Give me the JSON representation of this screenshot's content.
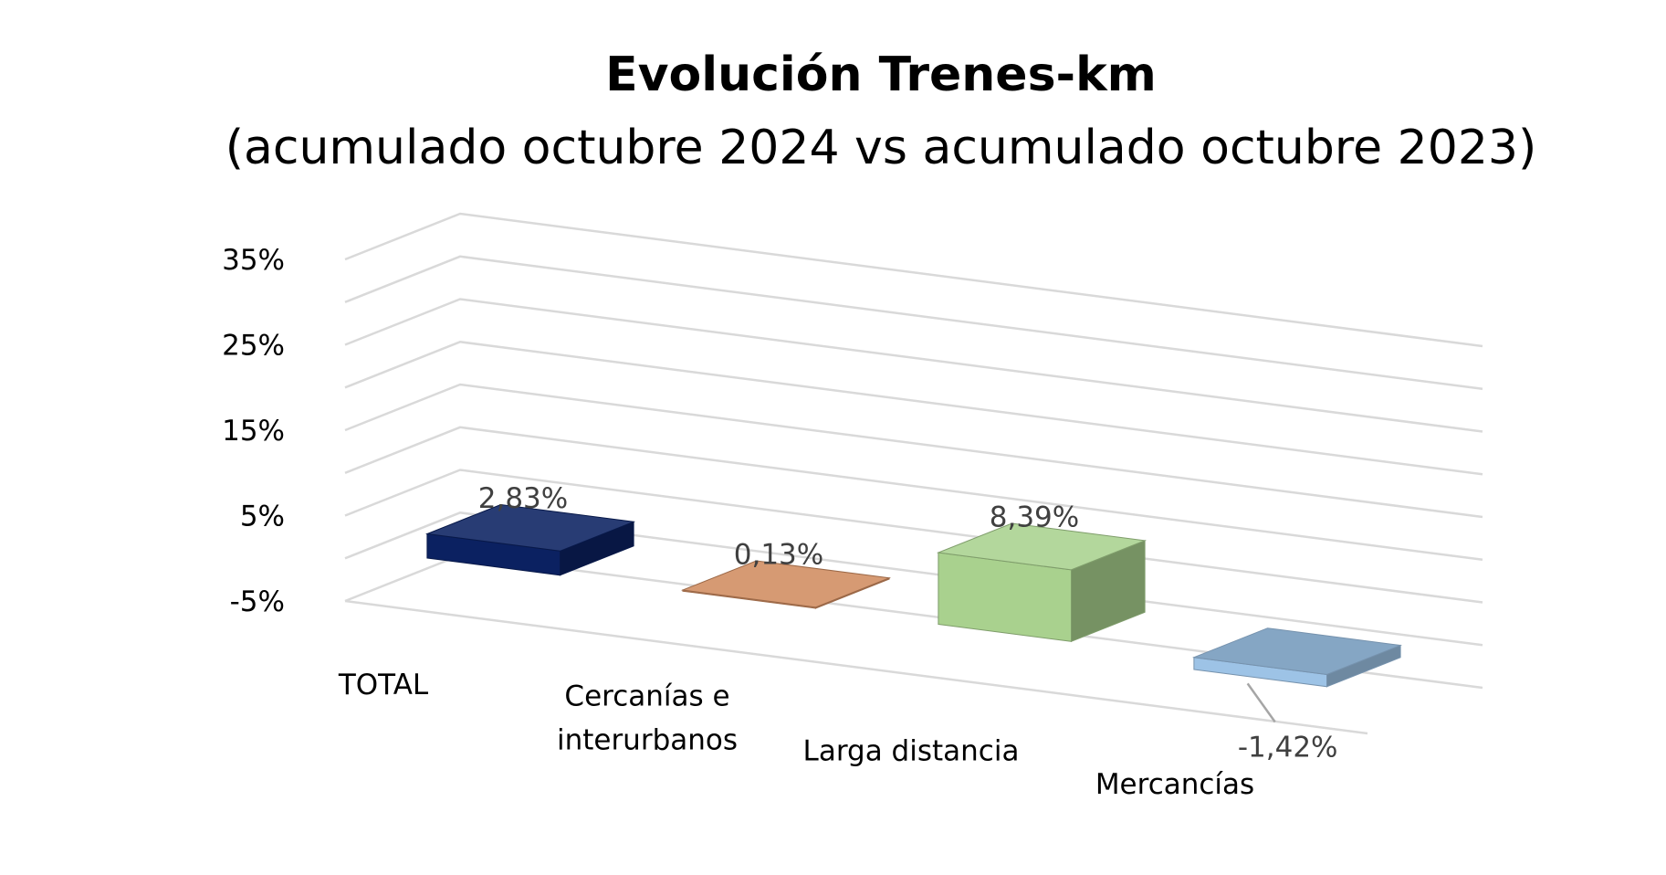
{
  "chart_data": {
    "type": "bar",
    "title": "Evolución Trenes-km",
    "subtitle": "(acumulado octubre 2024 vs acumulado octubre 2023)",
    "categories": [
      [
        "TOTAL"
      ],
      [
        "Cercanías e",
        "interurbanos"
      ],
      [
        "Larga distancia"
      ],
      [
        "Mercancías"
      ]
    ],
    "values": [
      2.83,
      0.13,
      8.39,
      -1.42
    ],
    "data_labels": [
      "2,83%",
      "0,13%",
      "8,39%",
      "-1,42%"
    ],
    "yticks": [
      "-5%",
      "5%",
      "15%",
      "25%",
      "35%"
    ],
    "ylim": [
      -5,
      35
    ],
    "grid": true,
    "legend": "none",
    "three_d": true,
    "colors": [
      "#0b2161",
      "#d08c60",
      "#a9d18e",
      "#9dc3e6"
    ]
  }
}
